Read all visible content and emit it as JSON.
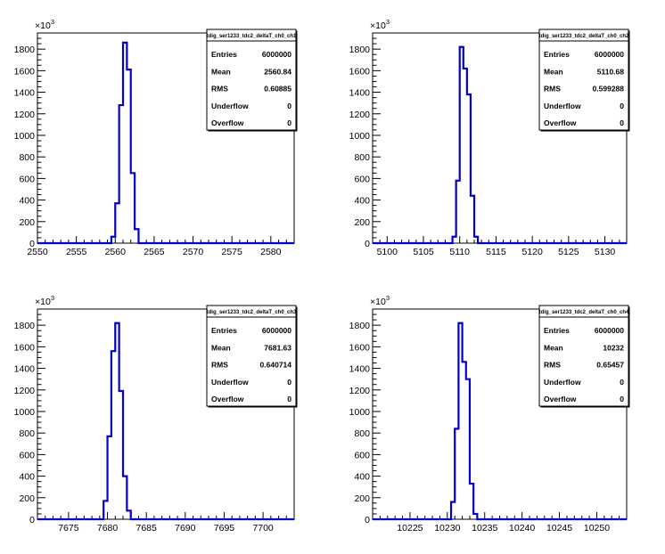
{
  "canvas": {
    "background": "#ffffff",
    "hist_color": "#0000cc"
  },
  "chart_data": [
    {
      "type": "histogram",
      "stats_title": "tdig_ser1233_tdc2_deltaT_ch0_ch1",
      "stats": [
        {
          "key": "Entries",
          "value": "6000000"
        },
        {
          "key": "Mean",
          "value": "2560.84"
        },
        {
          "key": "RMS",
          "value": "0.60885"
        },
        {
          "key": "Underflow",
          "value": "0"
        },
        {
          "key": "Overflow",
          "value": "0"
        }
      ],
      "y_multiplier_base": "×10",
      "y_multiplier_exp": "3",
      "xlim": [
        2550,
        2583
      ],
      "ylim": [
        0,
        1950
      ],
      "xticks": [
        2550,
        2555,
        2560,
        2565,
        2570,
        2575,
        2580
      ],
      "yticks": [
        0,
        200,
        400,
        600,
        800,
        1000,
        1200,
        1400,
        1600,
        1800
      ],
      "bin_width": 0.5,
      "bins": [
        [
          2559.5,
          60
        ],
        [
          2560.0,
          370
        ],
        [
          2560.5,
          1280
        ],
        [
          2561.0,
          1860
        ],
        [
          2561.5,
          1610
        ],
        [
          2562.0,
          650
        ],
        [
          2562.5,
          130
        ]
      ]
    },
    {
      "type": "histogram",
      "stats_title": "tdig_ser1233_tdc2_deltaT_ch0_ch2",
      "stats": [
        {
          "key": "Entries",
          "value": "6000000"
        },
        {
          "key": "Mean",
          "value": "5110.68"
        },
        {
          "key": "RMS",
          "value": "0.599288"
        },
        {
          "key": "Underflow",
          "value": "0"
        },
        {
          "key": "Overflow",
          "value": "0"
        }
      ],
      "y_multiplier_base": "×10",
      "y_multiplier_exp": "3",
      "xlim": [
        5098,
        5133
      ],
      "ylim": [
        0,
        1950
      ],
      "xticks": [
        5100,
        5105,
        5110,
        5115,
        5120,
        5125,
        5130
      ],
      "yticks": [
        0,
        200,
        400,
        600,
        800,
        1000,
        1200,
        1400,
        1600,
        1800
      ],
      "bin_width": 0.5,
      "bins": [
        [
          5109.0,
          60
        ],
        [
          5109.5,
          580
        ],
        [
          5110.0,
          1820
        ],
        [
          5110.5,
          1620
        ],
        [
          5111.0,
          1380
        ],
        [
          5111.5,
          440
        ],
        [
          5112.0,
          60
        ]
      ]
    },
    {
      "type": "histogram",
      "stats_title": "tdig_ser1233_tdc2_deltaT_ch0_ch3",
      "stats": [
        {
          "key": "Entries",
          "value": "6000000"
        },
        {
          "key": "Mean",
          "value": "7681.63"
        },
        {
          "key": "RMS",
          "value": "0.640714"
        },
        {
          "key": "Underflow",
          "value": "0"
        },
        {
          "key": "Overflow",
          "value": "0"
        }
      ],
      "y_multiplier_base": "×10",
      "y_multiplier_exp": "3",
      "xlim": [
        7671,
        7704
      ],
      "ylim": [
        0,
        1950
      ],
      "xticks": [
        7675,
        7680,
        7685,
        7690,
        7695,
        7700
      ],
      "yticks": [
        0,
        200,
        400,
        600,
        800,
        1000,
        1200,
        1400,
        1600,
        1800
      ],
      "bin_width": 0.5,
      "bins": [
        [
          7679.5,
          170
        ],
        [
          7680.0,
          770
        ],
        [
          7680.5,
          1560
        ],
        [
          7681.0,
          1820
        ],
        [
          7681.5,
          1190
        ],
        [
          7682.0,
          400
        ],
        [
          7682.5,
          80
        ]
      ]
    },
    {
      "type": "histogram",
      "stats_title": "tdig_ser1233_tdc2_deltaT_ch0_ch4",
      "stats": [
        {
          "key": "Entries",
          "value": "6000000"
        },
        {
          "key": "Mean",
          "value": "10232"
        },
        {
          "key": "RMS",
          "value": "0.65457"
        },
        {
          "key": "Underflow",
          "value": "0"
        },
        {
          "key": "Overflow",
          "value": "0"
        }
      ],
      "y_multiplier_base": "×10",
      "y_multiplier_exp": "3",
      "xlim": [
        10220,
        10254
      ],
      "ylim": [
        0,
        1950
      ],
      "xticks": [
        10225,
        10230,
        10235,
        10240,
        10245,
        10250
      ],
      "yticks": [
        0,
        200,
        400,
        600,
        800,
        1000,
        1200,
        1400,
        1600,
        1800
      ],
      "bin_width": 0.5,
      "bins": [
        [
          10230.5,
          160
        ],
        [
          10231.0,
          840
        ],
        [
          10231.5,
          1820
        ],
        [
          10232.0,
          1460
        ],
        [
          10232.5,
          1300
        ],
        [
          10233.0,
          330
        ],
        [
          10233.5,
          50
        ]
      ]
    }
  ]
}
